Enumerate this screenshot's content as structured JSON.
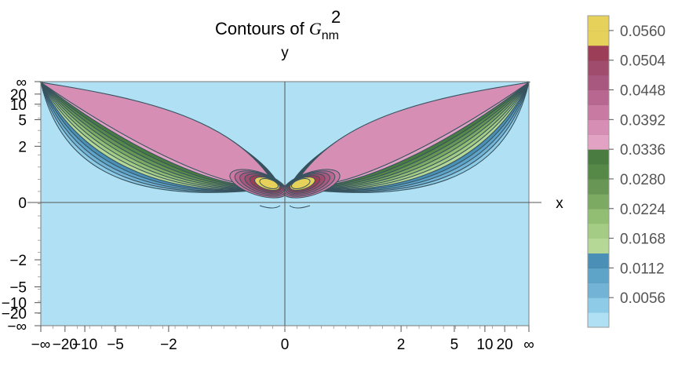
{
  "chart_data": {
    "type": "contour",
    "title": {
      "prefix": "Contours of ",
      "symbol": "G",
      "subscript": "nm",
      "superscript": "2"
    },
    "xlabel": "x",
    "ylabel": "y",
    "x_ticks": [
      "−∞",
      "−20",
      "−10",
      "−5",
      "−2",
      "0",
      "2",
      "5",
      "10",
      "20",
      "∞"
    ],
    "y_ticks": [
      "∞",
      "20",
      "10",
      "5",
      "2",
      "0",
      "−2",
      "−5",
      "−10",
      "−20",
      "−∞"
    ],
    "legend": {
      "placement": "right",
      "labels": [
        "0.0560",
        "0.0504",
        "0.0448",
        "0.0392",
        "0.0336",
        "0.0280",
        "0.0224",
        "0.0168",
        "0.0112",
        "0.0056"
      ],
      "label_values": [
        0.056,
        0.0504,
        0.0448,
        0.0392,
        0.0336,
        0.028,
        0.0224,
        0.0168,
        0.0112,
        0.0056
      ],
      "range": [
        0,
        0.0588
      ],
      "levels": [
        0,
        0.0028,
        0.0056,
        0.0084,
        0.0112,
        0.014,
        0.0168,
        0.0196,
        0.0224,
        0.0252,
        0.028,
        0.0308,
        0.0336,
        0.0364,
        0.0392,
        0.042,
        0.0448,
        0.0476,
        0.0504,
        0.0532,
        0.056,
        0.0588
      ],
      "band_colors": [
        "#b0e0f4",
        "#8ecbe6",
        "#72b3d6",
        "#5ea3c8",
        "#4a8fb6",
        "#b6d896",
        "#a4cc84",
        "#92be74",
        "#7caa62",
        "#689654",
        "#568848",
        "#4a7c42",
        "#e2a2c4",
        "#d68eb4",
        "#c87aa2",
        "#b86890",
        "#a8587e",
        "#a04c6c",
        "#9c3e58",
        "#e6d25a",
        "#e6d25a"
      ]
    },
    "grid": false,
    "axes_through_origin": true
  },
  "colors": {
    "background_level": "#b0e0f4",
    "contour_line": "#37535f"
  }
}
